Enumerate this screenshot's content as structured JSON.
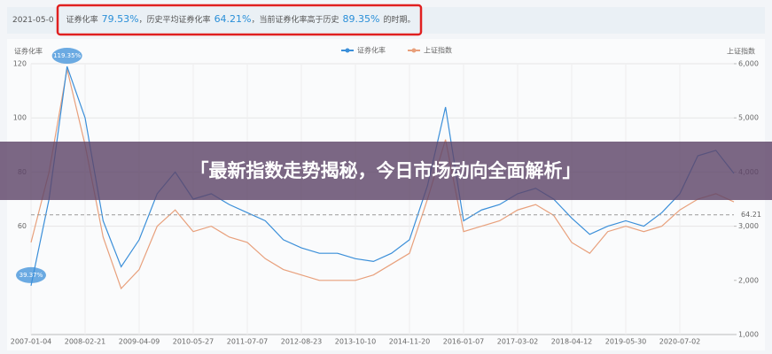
{
  "header": {
    "date": "2021-05-0",
    "label1": "证券化率",
    "value1": "79.53%",
    "label2": "，历史平均证券化率",
    "value2": "64.21%",
    "label3": "，当前证券化率高于历史",
    "value3": "89.35%",
    "label4": "的时期。"
  },
  "banner": "「最新指数走势揭秘，今日市场动向全面解析」",
  "chart_data": {
    "type": "line",
    "y_label": "证券化率",
    "y2_label": "上证指数",
    "categories": [
      "2007-01-04",
      null,
      null,
      "2008-02-21",
      null,
      null,
      "2009-04-09",
      null,
      null,
      "2010-05-27",
      null,
      null,
      "2011-07-07",
      null,
      null,
      "2012-08-23",
      null,
      null,
      "2013-10-10",
      null,
      null,
      "2014-11-20",
      null,
      null,
      "2016-01-07",
      null,
      null,
      "2017-03-02",
      null,
      null,
      "2018-04-12",
      null,
      null,
      "2019-05-30",
      null,
      null,
      "2020-07-02",
      null,
      null,
      null
    ],
    "series": [
      {
        "name": "证券化率",
        "color": "#3b8fd9",
        "values": [
          38,
          70,
          119,
          100,
          62,
          45,
          55,
          72,
          80,
          70,
          72,
          68,
          65,
          62,
          55,
          52,
          50,
          50,
          48,
          47,
          50,
          55,
          75,
          104,
          62,
          66,
          68,
          72,
          74,
          70,
          63,
          57,
          60,
          62,
          60,
          65,
          72,
          86,
          88,
          79.53
        ]
      },
      {
        "name": "上证指数",
        "color": "#e8a07c",
        "axis": "y2",
        "values": [
          2700,
          4000,
          5900,
          4500,
          2800,
          1850,
          2200,
          3000,
          3300,
          2900,
          3000,
          2800,
          2700,
          2400,
          2200,
          2100,
          2000,
          2000,
          2000,
          2100,
          2300,
          2500,
          3500,
          4600,
          2900,
          3000,
          3100,
          3300,
          3400,
          3200,
          2700,
          2500,
          2900,
          3000,
          2900,
          3000,
          3300,
          3500,
          3600,
          3450
        ]
      }
    ],
    "ylim": [
      20,
      120
    ],
    "yticks": [
      60,
      80,
      100,
      120
    ],
    "y2lim": [
      1000,
      6000
    ],
    "y2ticks": [
      {
        "value": 1000,
        "label": "1,000"
      },
      {
        "value": 2000,
        "label": "2,000"
      },
      {
        "value": 3000,
        "label": "3,000"
      },
      {
        "value": 4000,
        "label": "4,000"
      },
      {
        "value": 5000,
        "label": "5,000"
      },
      {
        "value": 6000,
        "label": "6,000"
      }
    ],
    "mean": 64.21,
    "max_label": "119.35%",
    "min_label": "39.37%",
    "grid": true,
    "legend": "top"
  }
}
